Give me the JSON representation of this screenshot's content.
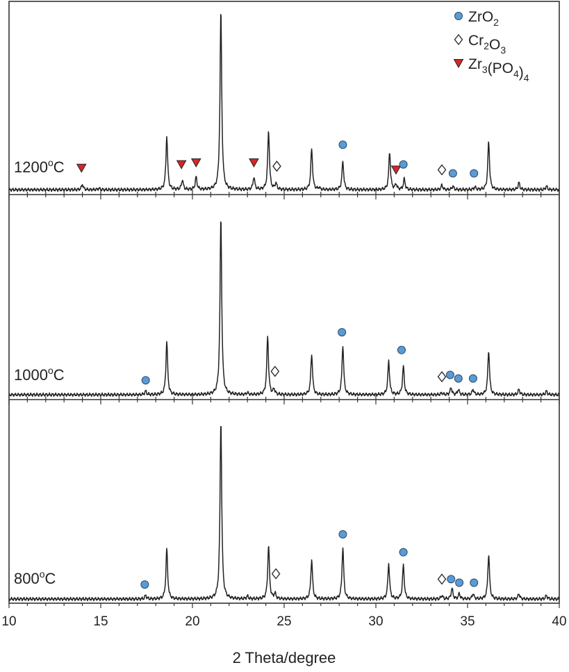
{
  "chart_data": {
    "type": "line",
    "xlabel": "2 Theta/degree",
    "xlim": [
      10,
      40
    ],
    "x_ticks": [
      10,
      15,
      20,
      25,
      30,
      35,
      40
    ],
    "colors": {
      "ZrO2": "#5b9bd5",
      "Cr2O3": "#ffffff",
      "Zr3(PO4)4": "#d62728",
      "trace": "#222222"
    },
    "legend": {
      "position": "top-right",
      "entries": [
        {
          "key": "ZrO2",
          "marker": "circle",
          "parts": [
            [
              "Zr",
              ""
            ],
            [
              "O",
              "2"
            ]
          ]
        },
        {
          "key": "Cr2O3",
          "marker": "diamond",
          "parts": [
            [
              "Cr",
              "2"
            ],
            [
              "O",
              "3"
            ]
          ]
        },
        {
          "key": "Zr3(PO4)4",
          "marker": "triangle",
          "parts": [
            [
              "Zr",
              "3"
            ],
            [
              "(PO",
              ""
            ],
            [
              "",
              "4"
            ],
            [
              ")",
              ""
            ],
            [
              "",
              "4"
            ]
          ]
        }
      ]
    },
    "panels": [
      {
        "label_main": "1200",
        "label_sup": "o",
        "label_unit": "C",
        "peaks": [
          [
            14.0,
            0.03
          ],
          [
            14.9,
            0.008
          ],
          [
            18.6,
            0.3
          ],
          [
            19.45,
            0.055
          ],
          [
            20.2,
            0.07
          ],
          [
            21.55,
            1.0
          ],
          [
            23.35,
            0.07
          ],
          [
            24.15,
            0.33
          ],
          [
            24.55,
            0.035
          ],
          [
            26.5,
            0.23
          ],
          [
            26.9,
            0.01
          ],
          [
            28.2,
            0.16
          ],
          [
            30.75,
            0.21
          ],
          [
            31.1,
            0.03
          ],
          [
            31.55,
            0.06
          ],
          [
            33.6,
            0.025
          ],
          [
            34.2,
            0.02
          ],
          [
            35.4,
            0.015
          ],
          [
            36.15,
            0.27
          ],
          [
            37.8,
            0.04
          ],
          [
            39.3,
            0.02
          ]
        ],
        "markers": [
          {
            "type": "triangle",
            "x": 13.95,
            "h": 0.09
          },
          {
            "type": "triangle",
            "x": 19.4,
            "h": 0.11
          },
          {
            "type": "triangle",
            "x": 20.2,
            "h": 0.12
          },
          {
            "type": "triangle",
            "x": 23.35,
            "h": 0.12
          },
          {
            "type": "diamond",
            "x": 24.6,
            "h": 0.1
          },
          {
            "type": "circle",
            "x": 28.2,
            "h": 0.22
          },
          {
            "type": "triangle",
            "x": 31.1,
            "h": 0.08
          },
          {
            "type": "circle",
            "x": 31.5,
            "h": 0.11
          },
          {
            "type": "diamond",
            "x": 33.6,
            "h": 0.08
          },
          {
            "type": "circle",
            "x": 34.2,
            "h": 0.06
          },
          {
            "type": "circle",
            "x": 35.35,
            "h": 0.06
          }
        ]
      },
      {
        "label_main": "1000",
        "label_sup": "o",
        "label_unit": "C",
        "peaks": [
          [
            17.45,
            0.02
          ],
          [
            18.6,
            0.3
          ],
          [
            21.55,
            1.0
          ],
          [
            23.0,
            0.01
          ],
          [
            24.1,
            0.33
          ],
          [
            24.45,
            0.03
          ],
          [
            26.5,
            0.23
          ],
          [
            28.2,
            0.28
          ],
          [
            30.7,
            0.19
          ],
          [
            31.5,
            0.16
          ],
          [
            33.6,
            0.01
          ],
          [
            34.1,
            0.04
          ],
          [
            34.5,
            0.03
          ],
          [
            35.3,
            0.03
          ],
          [
            36.15,
            0.25
          ],
          [
            37.8,
            0.03
          ],
          [
            39.3,
            0.02
          ]
        ],
        "markers": [
          {
            "type": "circle",
            "x": 17.45,
            "h": 0.05
          },
          {
            "type": "diamond",
            "x": 24.5,
            "h": 0.1
          },
          {
            "type": "circle",
            "x": 28.15,
            "h": 0.32
          },
          {
            "type": "circle",
            "x": 31.4,
            "h": 0.22
          },
          {
            "type": "diamond",
            "x": 33.6,
            "h": 0.07
          },
          {
            "type": "circle",
            "x": 34.05,
            "h": 0.08
          },
          {
            "type": "circle",
            "x": 34.5,
            "h": 0.06
          },
          {
            "type": "circle",
            "x": 35.3,
            "h": 0.06
          }
        ]
      },
      {
        "label_main": "800",
        "label_sup": "o",
        "label_unit": "C",
        "peaks": [
          [
            17.45,
            0.02
          ],
          [
            18.6,
            0.28
          ],
          [
            21.55,
            1.0
          ],
          [
            23.0,
            0.015
          ],
          [
            24.15,
            0.3
          ],
          [
            24.5,
            0.03
          ],
          [
            26.5,
            0.22
          ],
          [
            28.2,
            0.29
          ],
          [
            30.7,
            0.2
          ],
          [
            31.5,
            0.19
          ],
          [
            33.6,
            0.02
          ],
          [
            34.15,
            0.06
          ],
          [
            34.55,
            0.03
          ],
          [
            35.3,
            0.03
          ],
          [
            36.15,
            0.25
          ],
          [
            37.8,
            0.03
          ],
          [
            39.3,
            0.02
          ]
        ],
        "markers": [
          {
            "type": "circle",
            "x": 17.4,
            "h": 0.05
          },
          {
            "type": "diamond",
            "x": 24.55,
            "h": 0.11
          },
          {
            "type": "circle",
            "x": 28.2,
            "h": 0.33
          },
          {
            "type": "circle",
            "x": 31.5,
            "h": 0.23
          },
          {
            "type": "diamond",
            "x": 33.6,
            "h": 0.08
          },
          {
            "type": "circle",
            "x": 34.1,
            "h": 0.08
          },
          {
            "type": "circle",
            "x": 34.55,
            "h": 0.06
          },
          {
            "type": "circle",
            "x": 35.35,
            "h": 0.06
          }
        ]
      }
    ]
  }
}
